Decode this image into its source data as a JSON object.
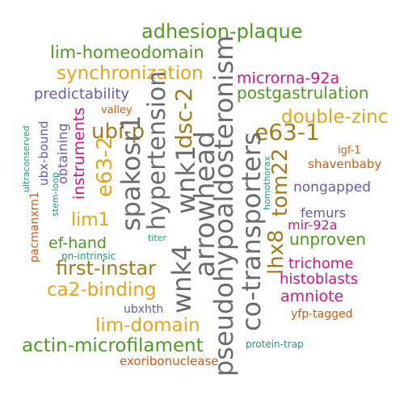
{
  "palette": {
    "olive": "#a27b1c",
    "orange": "#e8a317",
    "purple": "#6b5aa6",
    "green": "#4f9a1f",
    "magenta": "#d0187a",
    "gray": "#6b6b6b",
    "teal": "#1f9a77",
    "rust": "#cf5c16"
  },
  "words": [
    {
      "id": "adhesion-plaque",
      "text": "adhesion-plaque",
      "color": "#4f9a1f"
    },
    {
      "id": "lim-homeodomain",
      "text": "lim-homeodomain",
      "color": "#4f9a1f"
    },
    {
      "id": "synchronization",
      "text": "synchronization",
      "color": "#e8a317"
    },
    {
      "id": "predictability",
      "text": "predictability",
      "color": "#6b5aa6"
    },
    {
      "id": "valley",
      "text": "valley",
      "color": "#cf5c16"
    },
    {
      "id": "microrna-92a",
      "text": "microrna-92a",
      "color": "#d0187a"
    },
    {
      "id": "postgastrulation",
      "text": "postgastrulation",
      "color": "#4f9a1f"
    },
    {
      "id": "double-zinc",
      "text": "double-zinc",
      "color": "#e8a317"
    },
    {
      "id": "e63-1",
      "text": "e63-1",
      "color": "#a27b1c"
    },
    {
      "id": "ubi-p",
      "text": "ubi-p",
      "color": "#a27b1c"
    },
    {
      "id": "igf-1",
      "text": "igf-1",
      "color": "#cf5c16"
    },
    {
      "id": "shavenbaby",
      "text": "shavenbaby",
      "color": "#cf5c16"
    },
    {
      "id": "nongapped",
      "text": "nongapped",
      "color": "#6b5aa6"
    },
    {
      "id": "femurs",
      "text": "femurs",
      "color": "#6b5aa6"
    },
    {
      "id": "mir-92a",
      "text": "mir-92a",
      "color": "#d0187a"
    },
    {
      "id": "unproven",
      "text": "unproven",
      "color": "#4f9a1f"
    },
    {
      "id": "lim1",
      "text": "lim1",
      "color": "#e8a317"
    },
    {
      "id": "ef-hand",
      "text": "ef-hand",
      "color": "#4f9a1f"
    },
    {
      "id": "titer",
      "text": "titer",
      "color": "#1f9a77"
    },
    {
      "id": "pn-intrinsic",
      "text": "pn-intrinsic",
      "color": "#1f9a77"
    },
    {
      "id": "first-instar",
      "text": "first-instar",
      "color": "#a27b1c"
    },
    {
      "id": "ca2-binding",
      "text": "ca2-binding",
      "color": "#e8a317"
    },
    {
      "id": "trichome",
      "text": "trichome",
      "color": "#d0187a"
    },
    {
      "id": "histoblasts",
      "text": "histoblasts",
      "color": "#d0187a"
    },
    {
      "id": "amniote",
      "text": "amniote",
      "color": "#d0187a"
    },
    {
      "id": "ubxhth",
      "text": "ubxhth",
      "color": "#6b5aa6"
    },
    {
      "id": "yfp-tagged",
      "text": "yfp-tagged",
      "color": "#cf5c16"
    },
    {
      "id": "lim-domain",
      "text": "lim-domain",
      "color": "#e8a317"
    },
    {
      "id": "actin-microfilament",
      "text": "actin-microfilament",
      "color": "#4f9a1f"
    },
    {
      "id": "protein-trap",
      "text": "protein-trap",
      "color": "#1f9a77"
    },
    {
      "id": "exoribonuclease",
      "text": "exoribonuclease",
      "color": "#cf5c16"
    },
    {
      "id": "pacmanxrn1",
      "text": "pacmanxrn1",
      "color": "#cf5c16"
    },
    {
      "id": "ultraconserved",
      "text": "ultraconserved",
      "color": "#1f9a77"
    },
    {
      "id": "ubx-bound",
      "text": "ubx-bound",
      "color": "#6b5aa6"
    },
    {
      "id": "stem-loop",
      "text": "stem-loop",
      "color": "#1f9a77"
    },
    {
      "id": "obtaining",
      "text": "obtaining",
      "color": "#6b5aa6"
    },
    {
      "id": "instruments",
      "text": "instruments",
      "color": "#d0187a"
    },
    {
      "id": "e63-2",
      "text": "e63-2",
      "color": "#e8a317"
    },
    {
      "id": "spakosr1",
      "text": "spakosr1",
      "color": "#6b6b6b"
    },
    {
      "id": "hypertension",
      "text": "hypertension",
      "color": "#6b6b6b"
    },
    {
      "id": "wnk4",
      "text": "wnk4",
      "color": "#6b6b6b"
    },
    {
      "id": "wnk1",
      "text": "wnk1",
      "color": "#6b6b6b"
    },
    {
      "id": "arrowhead",
      "text": "arrowhead",
      "color": "#6b6b6b"
    },
    {
      "id": "dsc-2",
      "text": "dsc-2",
      "color": "#a27b1c"
    },
    {
      "id": "pseudohypoaldosteronism",
      "text": "pseudohypoaldosteronism",
      "color": "#6b6b6b"
    },
    {
      "id": "co-transporters",
      "text": "co-transporters",
      "color": "#6b6b6b"
    },
    {
      "id": "lhx8",
      "text": "lhx8",
      "color": "#a27b1c"
    },
    {
      "id": "tom22",
      "text": "tom22",
      "color": "#a27b1c"
    },
    {
      "id": "homothorax",
      "text": "homothorax",
      "color": "#1f9a77"
    }
  ]
}
